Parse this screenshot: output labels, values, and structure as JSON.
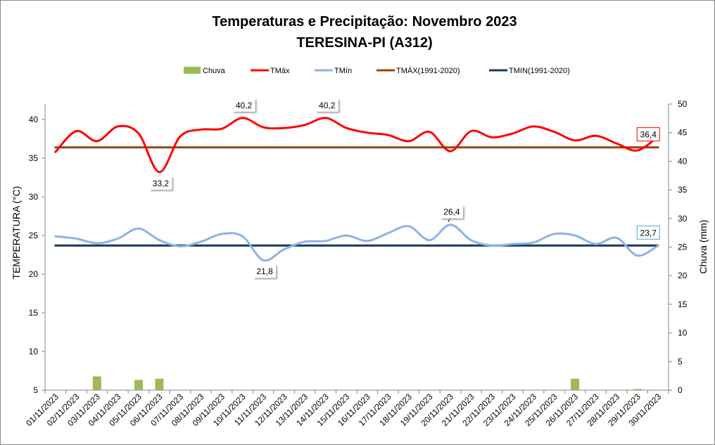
{
  "chart_data": {
    "type": "line",
    "title": "Temperaturas e Precipitação: Novembro 2023",
    "subtitle": "TERESINA-PI (A312)",
    "ylabel": "TEMPERATURA (°C)",
    "y2label": "Chuva (mm)",
    "ylim": [
      5,
      42
    ],
    "y2lim": [
      0,
      50
    ],
    "yticks": [
      5,
      10,
      15,
      20,
      25,
      30,
      35,
      40
    ],
    "y2ticks": [
      0,
      5,
      10,
      15,
      20,
      25,
      30,
      35,
      40,
      45,
      50
    ],
    "categories": [
      "01/11/2023",
      "02/11/2023",
      "03/11/2023",
      "04/11/2023",
      "05/11/2023",
      "06/11/2023",
      "07/11/2023",
      "08/11/2023",
      "09/11/2023",
      "10/11/2023",
      "11/11/2023",
      "12/11/2023",
      "13/11/2023",
      "14/11/2023",
      "15/11/2023",
      "16/11/2023",
      "17/11/2023",
      "18/11/2023",
      "19/11/2023",
      "20/11/2023",
      "21/11/2023",
      "22/11/2023",
      "23/11/2023",
      "24/11/2023",
      "25/11/2023",
      "26/11/2023",
      "27/11/2023",
      "28/11/2023",
      "29/11/2023",
      "30/11/2023"
    ],
    "series": [
      {
        "name": "Chuva",
        "type": "bar",
        "axis": "y2",
        "color": "#9bbb59",
        "values": [
          0,
          0,
          2.4,
          0,
          1.8,
          2.0,
          0,
          0,
          0,
          0,
          0,
          0,
          0,
          0,
          0,
          0,
          0,
          0,
          0,
          0,
          0,
          0,
          0.1,
          0,
          0,
          2.0,
          0,
          0,
          0.2,
          0
        ]
      },
      {
        "name": "TMáx",
        "type": "line",
        "axis": "y",
        "color": "#ff0000",
        "values": [
          35.8,
          38.5,
          37.2,
          39.1,
          38.2,
          33.2,
          37.8,
          38.7,
          38.8,
          40.2,
          39.0,
          38.9,
          39.3,
          40.2,
          38.9,
          38.3,
          38.0,
          37.2,
          38.4,
          35.9,
          38.5,
          37.7,
          38.2,
          39.1,
          38.4,
          37.3,
          37.9,
          36.9,
          36.0,
          37.8
        ]
      },
      {
        "name": "TMín",
        "type": "line",
        "axis": "y",
        "color": "#8db3e2",
        "values": [
          24.9,
          24.6,
          24.0,
          24.6,
          25.9,
          24.4,
          23.6,
          24.2,
          25.2,
          24.9,
          21.8,
          23.2,
          24.2,
          24.3,
          25.0,
          24.3,
          25.3,
          26.2,
          24.4,
          26.4,
          24.4,
          23.7,
          23.9,
          24.1,
          25.2,
          25.0,
          23.9,
          24.7,
          22.4,
          23.7
        ]
      },
      {
        "name": "TMÁX(1991-2020)",
        "type": "line",
        "axis": "y",
        "color": "#984807",
        "values": [
          36.4,
          36.4,
          36.4,
          36.4,
          36.4,
          36.4,
          36.4,
          36.4,
          36.4,
          36.4,
          36.4,
          36.4,
          36.4,
          36.4,
          36.4,
          36.4,
          36.4,
          36.4,
          36.4,
          36.4,
          36.4,
          36.4,
          36.4,
          36.4,
          36.4,
          36.4,
          36.4,
          36.4,
          36.4,
          36.4
        ]
      },
      {
        "name": "TMIN(1991-2020)",
        "type": "line",
        "axis": "y",
        "color": "#17375e",
        "values": [
          23.7,
          23.7,
          23.7,
          23.7,
          23.7,
          23.7,
          23.7,
          23.7,
          23.7,
          23.7,
          23.7,
          23.7,
          23.7,
          23.7,
          23.7,
          23.7,
          23.7,
          23.7,
          23.7,
          23.7,
          23.7,
          23.7,
          23.7,
          23.7,
          23.7,
          23.7,
          23.7,
          23.7,
          23.7,
          23.7
        ]
      }
    ],
    "annotations": [
      {
        "text": "33,2",
        "series": "TMáx",
        "index": 5,
        "style": "plain",
        "place": "below"
      },
      {
        "text": "40,2",
        "series": "TMáx",
        "index": 9,
        "style": "plain",
        "place": "above"
      },
      {
        "text": "40,2",
        "series": "TMáx",
        "index": 13,
        "style": "plain",
        "place": "above"
      },
      {
        "text": "36,4",
        "series": "TMÁX(1991-2020)",
        "index": 29,
        "style": "red-box",
        "place": "above"
      },
      {
        "text": "21,8",
        "series": "TMín",
        "index": 10,
        "style": "plain",
        "place": "below"
      },
      {
        "text": "26,4",
        "series": "TMín",
        "index": 19,
        "style": "plain",
        "place": "above"
      },
      {
        "text": "23,7",
        "series": "TMIN(1991-2020)",
        "index": 29,
        "style": "blue-box",
        "place": "above"
      }
    ],
    "legend_position": "top-center"
  }
}
